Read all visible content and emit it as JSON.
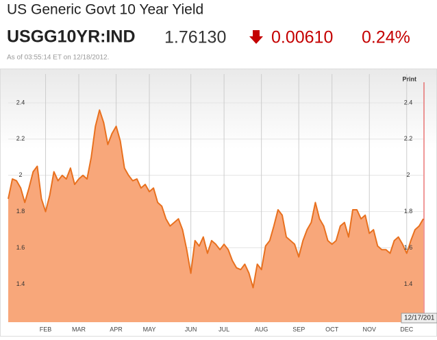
{
  "header": {
    "title": "US Generic Govt 10 Year Yield",
    "ticker": "USGG10YR:IND",
    "price": "1.76130",
    "change": "0.00610",
    "change_pct": "0.24%",
    "timestamp": "As of 03:55:14 ET on 12/18/2012.",
    "print": "Print",
    "end_date": "12/17/201"
  },
  "chart_data": {
    "type": "area",
    "categories": [
      null,
      null,
      null,
      null,
      null,
      null,
      null,
      null,
      null,
      "FEB",
      null,
      null,
      null,
      null,
      null,
      null,
      null,
      "MAR",
      null,
      null,
      null,
      null,
      null,
      null,
      null,
      null,
      "APR",
      null,
      null,
      null,
      null,
      null,
      null,
      null,
      "MAY",
      null,
      null,
      null,
      null,
      null,
      null,
      null,
      null,
      null,
      "JUN",
      null,
      null,
      null,
      null,
      null,
      null,
      null,
      "JUL",
      null,
      null,
      null,
      null,
      null,
      null,
      null,
      null,
      "AUG",
      null,
      null,
      null,
      null,
      null,
      null,
      null,
      null,
      "SEP",
      null,
      null,
      null,
      null,
      null,
      null,
      null,
      "OCT",
      null,
      null,
      null,
      null,
      null,
      null,
      null,
      null,
      "NOV",
      null,
      null,
      null,
      null,
      null,
      null,
      null,
      null,
      "DEC",
      null,
      null,
      null,
      null
    ],
    "values": [
      1.87,
      1.98,
      1.97,
      1.93,
      1.85,
      1.93,
      2.02,
      2.05,
      1.87,
      1.8,
      1.89,
      2.02,
      1.97,
      2.0,
      1.98,
      2.04,
      1.95,
      1.98,
      2.0,
      1.98,
      2.1,
      2.27,
      2.36,
      2.29,
      2.17,
      2.23,
      2.27,
      2.19,
      2.04,
      2.0,
      1.97,
      1.98,
      1.93,
      1.95,
      1.91,
      1.93,
      1.85,
      1.83,
      1.76,
      1.72,
      1.74,
      1.76,
      1.7,
      1.59,
      1.46,
      1.64,
      1.61,
      1.66,
      1.57,
      1.64,
      1.62,
      1.59,
      1.62,
      1.59,
      1.53,
      1.49,
      1.48,
      1.51,
      1.46,
      1.38,
      1.51,
      1.48,
      1.61,
      1.64,
      1.72,
      1.81,
      1.78,
      1.66,
      1.64,
      1.62,
      1.55,
      1.64,
      1.7,
      1.74,
      1.85,
      1.76,
      1.72,
      1.64,
      1.62,
      1.64,
      1.72,
      1.74,
      1.66,
      1.81,
      1.81,
      1.76,
      1.78,
      1.68,
      1.7,
      1.61,
      1.59,
      1.59,
      1.57,
      1.64,
      1.66,
      1.62,
      1.57,
      1.64,
      1.7,
      1.72,
      1.76
    ],
    "color": "#e8701e",
    "fill": "#f8a77a",
    "ylim": [
      1.19,
      2.57
    ],
    "yticks": [
      1.4,
      1.6,
      1.8,
      2,
      2.2,
      2.4
    ],
    "grid": true
  }
}
